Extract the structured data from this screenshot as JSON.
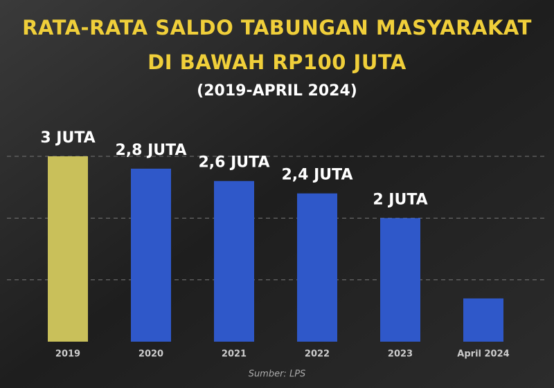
{
  "chart_data": {
    "type": "bar",
    "title": [
      "RATA-RATA SALDO TABUNGAN MASYARAKAT",
      "DI BAWAH RP100 JUTA"
    ],
    "subtitle": "(2019-APRIL 2024)",
    "categories": [
      "2019",
      "2020",
      "2021",
      "2022",
      "2023",
      "April 2024"
    ],
    "values": [
      3,
      2.8,
      2.6,
      2.4,
      2,
      0.7
    ],
    "value_labels": [
      "3 JUTA",
      "2,8 JUTA",
      "2,6 JUTA",
      "2,4 JUTA",
      "2 JUTA",
      null
    ],
    "colors": [
      "#c9c05a",
      "#2f58c9",
      "#2f58c9",
      "#2f58c9",
      "#2f58c9",
      "#2f58c9"
    ],
    "ylim": [
      0,
      3
    ],
    "yticks": [
      1,
      2,
      3
    ],
    "grid": true,
    "source": "Sumber: LPS"
  }
}
